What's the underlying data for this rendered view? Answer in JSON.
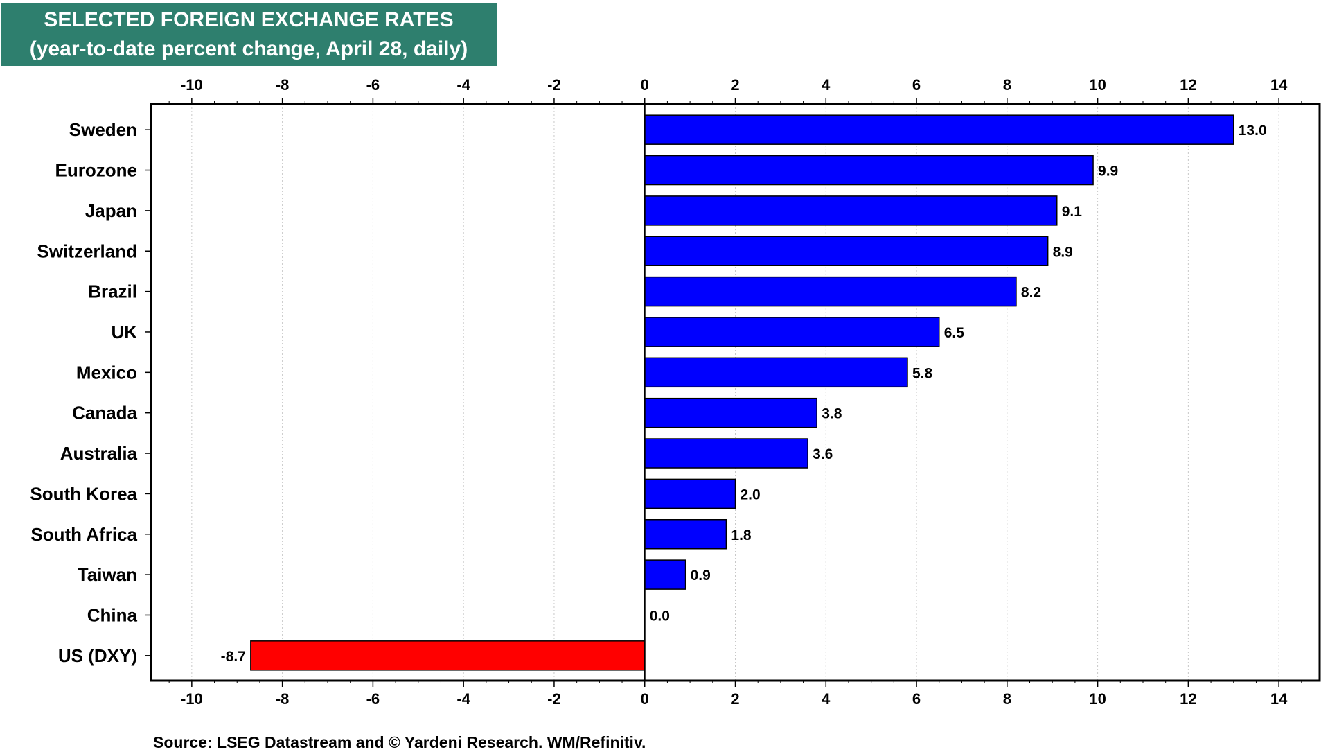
{
  "title": "SELECTED FOREIGN EXCHANGE RATES",
  "subtitle": "(year-to-date percent change, April 28, daily)",
  "source": "Source: LSEG Datastream and © Yardeni Research. WM/Refinitiv.",
  "colors": {
    "title_bg": "#2e7f6e",
    "positive": "#0000ff",
    "negative": "#ff0000"
  },
  "chart_data": {
    "type": "bar",
    "orientation": "horizontal",
    "title": "SELECTED FOREIGN EXCHANGE RATES",
    "subtitle": "(year-to-date percent change, April 28, daily)",
    "categories": [
      "Sweden",
      "Eurozone",
      "Japan",
      "Switzerland",
      "Brazil",
      "UK",
      "Mexico",
      "Canada",
      "Australia",
      "South Korea",
      "South Africa",
      "Taiwan",
      "China",
      "US (DXY)"
    ],
    "values": [
      13.0,
      9.9,
      9.1,
      8.9,
      8.2,
      6.5,
      5.8,
      3.8,
      3.6,
      2.0,
      1.8,
      0.9,
      0.0,
      -8.7
    ],
    "value_labels": [
      "13.0",
      "9.9",
      "9.1",
      "8.9",
      "8.2",
      "6.5",
      "5.8",
      "3.8",
      "3.6",
      "2.0",
      "1.8",
      "0.9",
      "0.0",
      "-8.7"
    ],
    "xlim": [
      -10.9,
      14.9
    ],
    "xticks": [
      -10,
      -8,
      -6,
      -4,
      -2,
      0,
      2,
      4,
      6,
      8,
      10,
      12,
      14
    ],
    "xtick_labels": [
      "-10",
      "-8",
      "-6",
      "-4",
      "-2",
      "0",
      "2",
      "4",
      "6",
      "8",
      "10",
      "12",
      "14"
    ],
    "axis_position": "top-and-bottom",
    "grid": true,
    "legend": "none"
  }
}
